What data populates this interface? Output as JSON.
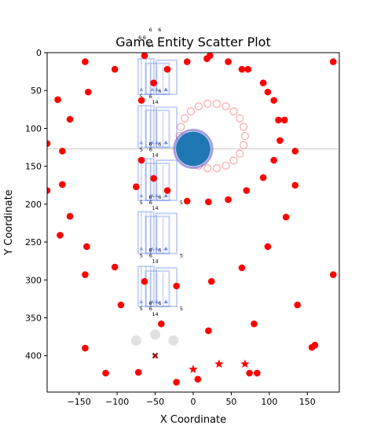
{
  "chart_data": {
    "type": "scatter",
    "title": "Game Entity Scatter Plot",
    "xlabel": "X Coordinate",
    "ylabel": "Y Coordinate",
    "xlim": [
      -192,
      192
    ],
    "ylim": [
      448,
      0
    ],
    "y_inverted": true,
    "xticks": [
      -150,
      -100,
      -50,
      0,
      50,
      100,
      150
    ],
    "yticks": [
      0,
      50,
      100,
      150,
      200,
      250,
      300,
      350,
      400
    ],
    "reference_line_y": 127,
    "player": {
      "x": 0,
      "y": 127,
      "color": "#1f77b4",
      "ring_color": "#6a5acd"
    },
    "waypoint_ring": {
      "cx": 25,
      "cy": 110,
      "r": 43,
      "count": 22,
      "color": "#f4a7a7"
    },
    "formations": {
      "color": "#4169e1",
      "columns": [
        -60,
        -48,
        -32
      ],
      "rows": [
        {
          "y_top": 8,
          "y_bot": 55,
          "labels_left": [
            "5",
            "6"
          ],
          "labels_right": [
            "6",
            "14"
          ]
        },
        {
          "y_top": 70,
          "y_bot": 125,
          "labels_left": [
            "5",
            "6"
          ],
          "labels_right": [
            "6",
            "6",
            "14"
          ]
        },
        {
          "y_top": 140,
          "y_bot": 195,
          "labels_left": [
            "5",
            "6"
          ],
          "labels_right": [
            "6",
            "6",
            "14",
            "5"
          ]
        },
        {
          "y_top": 210,
          "y_bot": 265,
          "labels_left": [
            "5",
            "6"
          ],
          "labels_right": [
            "6",
            "6",
            "14",
            "5"
          ]
        },
        {
          "y_top": 282,
          "y_bot": 335,
          "labels_left": [
            "5",
            "6"
          ],
          "labels_right": [
            "6",
            "6",
            "14",
            "5"
          ]
        }
      ],
      "top_labels": [
        "6",
        "6",
        "6",
        "6",
        "14"
      ]
    },
    "series": [
      {
        "marker": "circle",
        "color": "#ff0000",
        "points": [
          [
            -192,
            120
          ],
          [
            -192,
            182
          ],
          [
            -178,
            62
          ],
          [
            -175,
            241
          ],
          [
            -172,
            130
          ],
          [
            -172,
            174
          ],
          [
            -162,
            88
          ],
          [
            -162,
            216
          ],
          [
            -142,
            12
          ],
          [
            -138,
            52
          ],
          [
            -140,
            256
          ],
          [
            -142,
            293
          ],
          [
            -142,
            390
          ],
          [
            -103,
            22
          ],
          [
            -103,
            283
          ],
          [
            -95,
            333
          ],
          [
            -115,
            423
          ],
          [
            -75,
            177
          ],
          [
            -72,
            422
          ],
          [
            -68,
            63
          ],
          [
            -68,
            142
          ],
          [
            -64,
            4
          ],
          [
            -64,
            302
          ],
          [
            -52,
            40
          ],
          [
            -52,
            166
          ],
          [
            -42,
            358
          ],
          [
            -34,
            22
          ],
          [
            -34,
            182
          ],
          [
            -22,
            308
          ],
          [
            -22,
            435
          ],
          [
            -8,
            12
          ],
          [
            -8,
            196
          ],
          [
            6,
            431
          ],
          [
            18,
            8
          ],
          [
            22,
            4
          ],
          [
            20,
            197
          ],
          [
            20,
            367
          ],
          [
            24,
            302
          ],
          [
            46,
            12
          ],
          [
            46,
            194
          ],
          [
            64,
            22
          ],
          [
            72,
            22
          ],
          [
            64,
            284
          ],
          [
            70,
            182
          ],
          [
            80,
            358
          ],
          [
            74,
            423
          ],
          [
            84,
            423
          ],
          [
            92,
            40
          ],
          [
            92,
            165
          ],
          [
            98,
            52
          ],
          [
            98,
            256
          ],
          [
            106,
            63
          ],
          [
            106,
            142
          ],
          [
            112,
            89
          ],
          [
            114,
            116
          ],
          [
            120,
            89
          ],
          [
            122,
            217
          ],
          [
            134,
            130
          ],
          [
            134,
            175
          ],
          [
            137,
            333
          ],
          [
            156,
            389
          ],
          [
            160,
            386
          ],
          [
            184,
            12
          ],
          [
            184,
            293
          ]
        ]
      },
      {
        "marker": "star",
        "color": "#ff0000",
        "points": [
          [
            0,
            418
          ],
          [
            34,
            411
          ],
          [
            68,
            411
          ]
        ]
      },
      {
        "marker": "x",
        "color": "#8b0000",
        "points": [
          [
            -50,
            400
          ]
        ]
      },
      {
        "marker": "circle",
        "color": "#d3d3d3",
        "points": [
          [
            -75,
            380
          ],
          [
            -50,
            372
          ],
          [
            -26,
            380
          ]
        ]
      }
    ]
  }
}
